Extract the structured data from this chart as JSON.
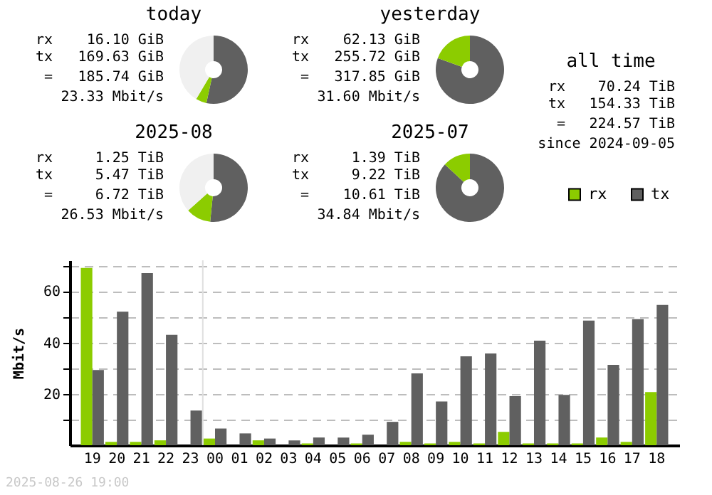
{
  "chart_data": [
    {
      "type": "donut",
      "title": "today",
      "categories": [
        null,
        null,
        null
      ],
      "values": [
        53.4,
        5.1,
        41.5
      ],
      "colors": [
        "#606060",
        "#8ccc00",
        "#f0f0f0"
      ],
      "annotations": [
        "rx",
        "16.10 GiB",
        "tx",
        "169.63 GiB",
        "=",
        "185.74 GiB",
        "23.33 Mbit/s"
      ]
    },
    {
      "type": "donut",
      "title": "yesterday",
      "categories": [
        null,
        null
      ],
      "values": [
        80.5,
        19.5
      ],
      "colors": [
        "#606060",
        "#8ccc00"
      ],
      "annotations": [
        "rx",
        "62.13 GiB",
        "tx",
        "255.72 GiB",
        "=",
        "317.85 GiB",
        "31.60 Mbit/s"
      ]
    },
    {
      "type": "other",
      "title": "all time",
      "annotations": [
        "rx",
        "70.24 TiB",
        "tx",
        "154.33 TiB",
        "=",
        "224.57 TiB",
        "since 2024-09-05"
      ]
    },
    {
      "type": "donut",
      "title": "2025-08",
      "categories": [
        null,
        null,
        null
      ],
      "values": [
        51.6,
        11.8,
        36.6
      ],
      "colors": [
        "#606060",
        "#8ccc00",
        "#f0f0f0"
      ],
      "annotations": [
        "rx",
        "1.25 TiB",
        "tx",
        "5.47 TiB",
        "=",
        "6.72 TiB",
        "26.53 Mbit/s"
      ]
    },
    {
      "type": "donut",
      "title": "2025-07",
      "categories": [
        null,
        null
      ],
      "values": [
        86.9,
        13.1
      ],
      "colors": [
        "#606060",
        "#8ccc00"
      ],
      "annotations": [
        "rx",
        "1.39 TiB",
        "tx",
        "9.22 TiB",
        "=",
        "10.61 TiB",
        "34.84 Mbit/s"
      ]
    },
    {
      "type": "bar",
      "ylabel": "Mbit/s",
      "categories": [
        "19",
        "20",
        "21",
        "22",
        "23",
        "00",
        "01",
        "02",
        "03",
        "04",
        "05",
        "06",
        "07",
        "08",
        "09",
        "10",
        "11",
        "12",
        "13",
        "14",
        "15",
        "16",
        "17",
        "18"
      ],
      "series": [
        {
          "name": "rx",
          "color": "#8ccc00",
          "values": [
            69,
            1.3,
            1.3,
            1.9,
            0,
            2.6,
            0,
            1.9,
            0,
            0.7,
            0,
            0.7,
            0,
            1.3,
            0.7,
            1.3,
            0.7,
            5.2,
            0.7,
            0.7,
            0.7,
            3,
            1.3,
            20.7
          ]
        },
        {
          "name": "tx",
          "color": "#606060",
          "values": [
            29.3,
            52,
            67,
            43,
            13.5,
            6.5,
            4.6,
            2.6,
            1.9,
            3,
            3,
            4.1,
            9.1,
            28,
            17,
            34.6,
            35.7,
            19.1,
            40.7,
            19.6,
            48.5,
            31.3,
            49.1,
            54.6
          ]
        }
      ],
      "ylim": [
        0,
        72
      ],
      "yticks": [
        {
          "value": 10,
          "label": null
        },
        20,
        {
          "value": 30,
          "label": null
        },
        40,
        {
          "value": 50,
          "label": null
        },
        60,
        {
          "value": 70,
          "label": null
        }
      ],
      "grid": "y",
      "legend": "top right",
      "ref_lines": [
        {
          "axis": "x",
          "value": "00",
          "color": "#e0e0e0"
        }
      ],
      "annotations": [
        "2025-08-26 19:00"
      ]
    }
  ]
}
